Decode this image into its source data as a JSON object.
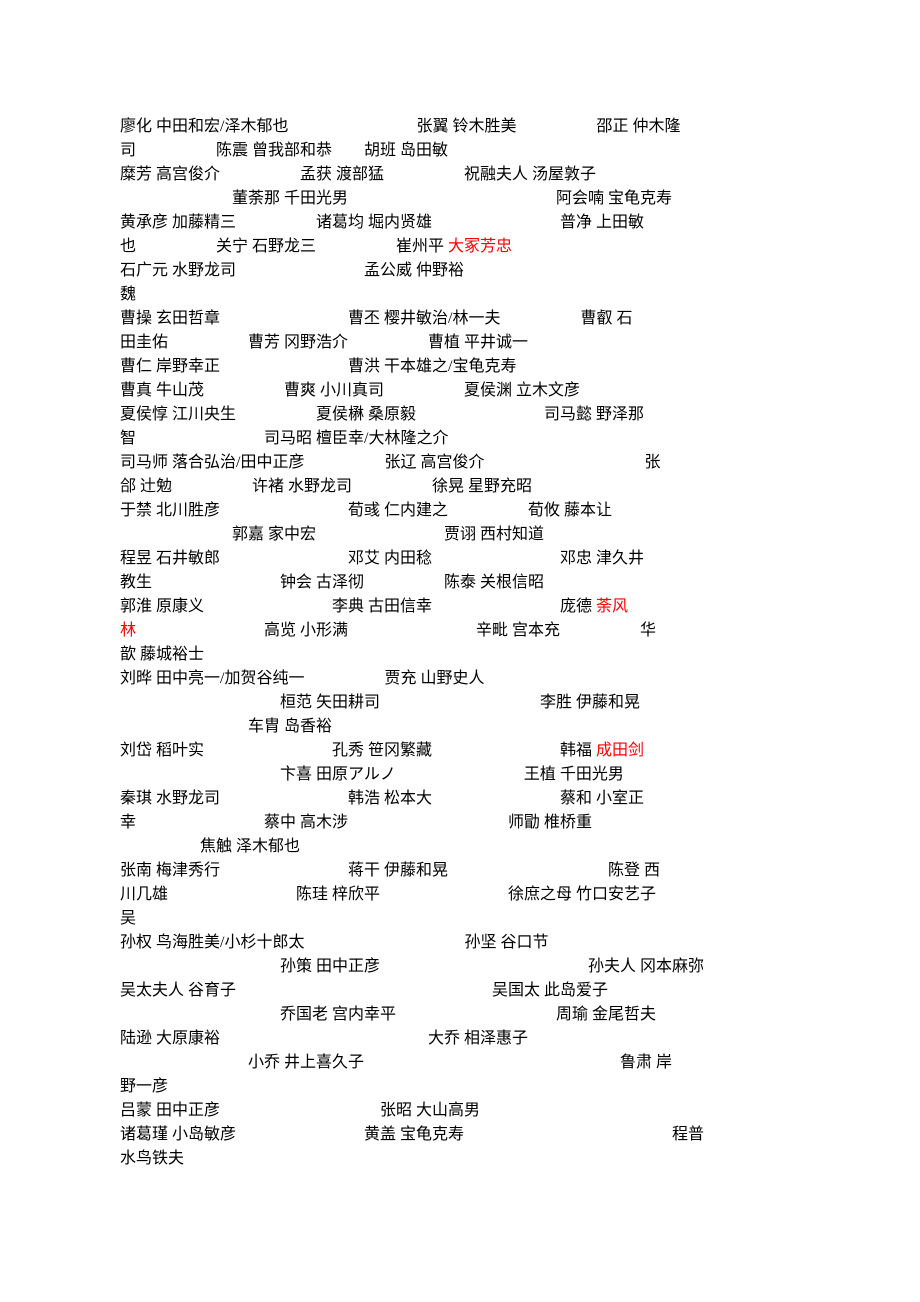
{
  "colors": {
    "text": "#000000",
    "highlight": "#ff0000",
    "background": "#ffffff"
  },
  "typography": {
    "font_family": "SimSun, 宋体, serif",
    "font_size_pt": 12,
    "line_height": 1.5
  },
  "lines": [
    [
      {
        "t": "廖化 中田和宏/泽木郁也",
        "c": "txt"
      },
      {
        "t": "",
        "c": "gap-l"
      },
      {
        "t": "张翼 铃木胜美",
        "c": "txt"
      },
      {
        "t": "",
        "c": "gap-m"
      },
      {
        "t": "邵正 仲木隆",
        "c": "txt"
      }
    ],
    [
      {
        "t": "司",
        "c": "txt"
      },
      {
        "t": "",
        "c": "gap-m"
      },
      {
        "t": "陈震 曾我部和恭",
        "c": "txt"
      },
      {
        "t": "",
        "c": "gap-s"
      },
      {
        "t": "胡班 岛田敏",
        "c": "txt"
      }
    ],
    [
      {
        "t": "糜芳 高宫俊介",
        "c": "txt"
      },
      {
        "t": "",
        "c": "gap-m"
      },
      {
        "t": "孟获 渡部猛",
        "c": "txt"
      },
      {
        "t": "",
        "c": "gap-m"
      },
      {
        "t": "祝融夫人 汤屋敦子",
        "c": "txt"
      }
    ],
    [
      {
        "t": "",
        "c": "indent"
      },
      {
        "t": "董荼那 千田光男",
        "c": "txt"
      },
      {
        "t": "",
        "c": "gap-l"
      },
      {
        "t": "",
        "c": "gap-m"
      },
      {
        "t": "阿会喃 宝龟克寿",
        "c": "txt"
      }
    ],
    [
      {
        "t": "黄承彦 加藤精三",
        "c": "txt"
      },
      {
        "t": "",
        "c": "gap-m"
      },
      {
        "t": "诸葛均 堀内贤雄",
        "c": "txt"
      },
      {
        "t": "",
        "c": "gap-l"
      },
      {
        "t": "普净 上田敏",
        "c": "txt"
      }
    ],
    [
      {
        "t": "也",
        "c": "txt"
      },
      {
        "t": "",
        "c": "gap-m"
      },
      {
        "t": "关宁 石野龙三",
        "c": "txt"
      },
      {
        "t": "",
        "c": "gap-m"
      },
      {
        "t": "崔州平 ",
        "c": "txt"
      },
      {
        "t": "大冢芳忠",
        "c": "hl"
      }
    ],
    [
      {
        "t": "石广元 水野龙司",
        "c": "txt"
      },
      {
        "t": "",
        "c": "gap-l"
      },
      {
        "t": "孟公威 仲野裕",
        "c": "txt"
      }
    ],
    [
      {
        "t": "魏",
        "c": "txt"
      }
    ],
    [
      {
        "t": "曹操 玄田哲章",
        "c": "txt"
      },
      {
        "t": "",
        "c": "gap-l"
      },
      {
        "t": "曹丕 樱井敏治/林一夫",
        "c": "txt"
      },
      {
        "t": "",
        "c": "gap-m"
      },
      {
        "t": "曹叡 石",
        "c": "txt"
      }
    ],
    [
      {
        "t": "田圭佑",
        "c": "txt"
      },
      {
        "t": "",
        "c": "gap-m"
      },
      {
        "t": "曹芳 冈野浩介",
        "c": "txt"
      },
      {
        "t": "",
        "c": "gap-m"
      },
      {
        "t": "曹植 平井诚一",
        "c": "txt"
      }
    ],
    [
      {
        "t": "曹仁 岸野幸正",
        "c": "txt"
      },
      {
        "t": "",
        "c": "gap-l"
      },
      {
        "t": "曹洪 干本雄之/宝龟克寿",
        "c": "txt"
      }
    ],
    [
      {
        "t": "  曹真 牛山茂",
        "c": "txt"
      },
      {
        "t": "",
        "c": "gap-m"
      },
      {
        "t": "曹爽 小川真司",
        "c": "txt"
      },
      {
        "t": "",
        "c": "gap-m"
      },
      {
        "t": "夏侯渊 立木文彦",
        "c": "txt"
      }
    ],
    [
      {
        "t": "夏侯惇 江川央生",
        "c": "txt"
      },
      {
        "t": "",
        "c": "gap-m"
      },
      {
        "t": "夏侯楙 桑原毅",
        "c": "txt"
      },
      {
        "t": "",
        "c": "gap-l"
      },
      {
        "t": "司马懿 野泽那",
        "c": "txt"
      }
    ],
    [
      {
        "t": "智",
        "c": "txt"
      },
      {
        "t": "",
        "c": "gap-l"
      },
      {
        "t": "司马昭 檀臣幸/大林隆之介",
        "c": "txt"
      }
    ],
    [
      {
        "t": "司马师 落合弘治/田中正彦",
        "c": "txt"
      },
      {
        "t": "",
        "c": "gap-m"
      },
      {
        "t": "张辽 高宫俊介",
        "c": "txt"
      },
      {
        "t": "",
        "c": "gap-l"
      },
      {
        "t": "",
        "c": "gap-s"
      },
      {
        "t": "张",
        "c": "txt"
      }
    ],
    [
      {
        "t": "郃 辻勉",
        "c": "txt"
      },
      {
        "t": "",
        "c": "gap-m"
      },
      {
        "t": "许褚 水野龙司",
        "c": "txt"
      },
      {
        "t": "",
        "c": "gap-m"
      },
      {
        "t": "徐晃 星野充昭",
        "c": "txt"
      }
    ],
    [
      {
        "t": "于禁 北川胜彦",
        "c": "txt"
      },
      {
        "t": "",
        "c": "gap-l"
      },
      {
        "t": "荀彧 仁内建之",
        "c": "txt"
      },
      {
        "t": "",
        "c": "gap-m"
      },
      {
        "t": "荀攸 藤本让",
        "c": "txt"
      }
    ],
    [
      {
        "t": "",
        "c": "indent"
      },
      {
        "t": "郭嘉 家中宏",
        "c": "txt"
      },
      {
        "t": "",
        "c": "gap-l"
      },
      {
        "t": "贾诩 西村知道",
        "c": "txt"
      }
    ],
    [
      {
        "t": "程昱 石井敏郎",
        "c": "txt"
      },
      {
        "t": "",
        "c": "gap-l"
      },
      {
        "t": "邓艾 内田稔",
        "c": "txt"
      },
      {
        "t": "",
        "c": "gap-l"
      },
      {
        "t": "邓忠 津久井",
        "c": "txt"
      }
    ],
    [
      {
        "t": "教生",
        "c": "txt"
      },
      {
        "t": "",
        "c": "gap-l"
      },
      {
        "t": "钟会 古泽彻",
        "c": "txt"
      },
      {
        "t": "",
        "c": "gap-m"
      },
      {
        "t": "陈泰 关根信昭",
        "c": "txt"
      }
    ],
    [
      {
        "t": "郭淮 原康义",
        "c": "txt"
      },
      {
        "t": "",
        "c": "gap-l"
      },
      {
        "t": "李典 古田信幸",
        "c": "txt"
      },
      {
        "t": "",
        "c": "gap-l"
      },
      {
        "t": "庞德 ",
        "c": "txt"
      },
      {
        "t": "荼风",
        "c": "hl"
      }
    ],
    [
      {
        "t": "林",
        "c": "hl"
      },
      {
        "t": "",
        "c": "gap-l"
      },
      {
        "t": "高览 小形满",
        "c": "txt"
      },
      {
        "t": "",
        "c": "gap-l"
      },
      {
        "t": "辛毗 宫本充",
        "c": "txt"
      },
      {
        "t": "",
        "c": "gap-m"
      },
      {
        "t": "华",
        "c": "txt"
      }
    ],
    [
      {
        "t": "歆 藤城裕士",
        "c": "txt"
      }
    ],
    [
      {
        "t": "刘晔 田中亮一/加贺谷纯一",
        "c": "txt"
      },
      {
        "t": "",
        "c": "gap-m"
      },
      {
        "t": "贾充 山野史人",
        "c": "txt"
      }
    ],
    [
      {
        "t": "",
        "c": "gap-l"
      },
      {
        "t": "",
        "c": "gap-s"
      },
      {
        "t": "桓范 矢田耕司",
        "c": "txt"
      },
      {
        "t": "",
        "c": "gap-l"
      },
      {
        "t": "",
        "c": "gap-s"
      },
      {
        "t": "李胜 伊藤和晃",
        "c": "txt"
      }
    ],
    [
      {
        "t": "",
        "c": "gap-l"
      },
      {
        "t": "车胄 岛香裕",
        "c": "txt"
      }
    ],
    [
      {
        "t": "刘岱 稻叶实",
        "c": "txt"
      },
      {
        "t": "",
        "c": "gap-l"
      },
      {
        "t": "孔秀 笹冈繁藏",
        "c": "txt"
      },
      {
        "t": "",
        "c": "gap-l"
      },
      {
        "t": "韩福 ",
        "c": "txt"
      },
      {
        "t": "成田剑",
        "c": "hl"
      }
    ],
    [
      {
        "t": "",
        "c": "gap-l"
      },
      {
        "t": "",
        "c": "gap-s"
      },
      {
        "t": "卞喜 田原アルノ",
        "c": "txt"
      },
      {
        "t": "",
        "c": "gap-l"
      },
      {
        "t": "王植 千田光男",
        "c": "txt"
      }
    ],
    [
      {
        "t": "秦琪 水野龙司",
        "c": "txt"
      },
      {
        "t": "",
        "c": "gap-l"
      },
      {
        "t": "韩浩 松本大",
        "c": "txt"
      },
      {
        "t": "",
        "c": "gap-l"
      },
      {
        "t": "蔡和 小室正",
        "c": "txt"
      }
    ],
    [
      {
        "t": "幸",
        "c": "txt"
      },
      {
        "t": "",
        "c": "gap-l"
      },
      {
        "t": "蔡中 高木涉",
        "c": "txt"
      },
      {
        "t": "",
        "c": "gap-l"
      },
      {
        "t": "",
        "c": "gap-s"
      },
      {
        "t": "师勖 椎桥重",
        "c": "txt"
      }
    ],
    [
      {
        "t": "",
        "c": "gap-m"
      },
      {
        "t": "焦触 泽木郁也",
        "c": "txt"
      }
    ],
    [
      {
        "t": "张南 梅津秀行",
        "c": "txt"
      },
      {
        "t": "",
        "c": "gap-l"
      },
      {
        "t": "蒋干 伊藤和晃",
        "c": "txt"
      },
      {
        "t": "",
        "c": "gap-l"
      },
      {
        "t": "",
        "c": "gap-s"
      },
      {
        "t": "陈登 西",
        "c": "txt"
      }
    ],
    [
      {
        "t": "川几雄",
        "c": "txt"
      },
      {
        "t": "",
        "c": "gap-l"
      },
      {
        "t": "陈珪 梓欣平",
        "c": "txt"
      },
      {
        "t": "",
        "c": "gap-l"
      },
      {
        "t": "徐庶之母 竹口安艺子",
        "c": "txt"
      }
    ],
    [
      {
        "t": "吴",
        "c": "txt"
      }
    ],
    [
      {
        "t": "孙权 鸟海胜美/小杉十郎太",
        "c": "txt"
      },
      {
        "t": "",
        "c": "gap-l"
      },
      {
        "t": "",
        "c": "gap-s"
      },
      {
        "t": "孙坚 谷口节",
        "c": "txt"
      }
    ],
    [
      {
        "t": "",
        "c": "gap-l"
      },
      {
        "t": "",
        "c": "gap-s"
      },
      {
        "t": "孙策  田中正彦",
        "c": "txt"
      },
      {
        "t": "",
        "c": "gap-l"
      },
      {
        "t": "",
        "c": "gap-m"
      },
      {
        "t": "孙夫人 冈本麻弥",
        "c": "txt"
      }
    ],
    [
      {
        "t": "吴太夫人 谷育子",
        "c": "txt"
      },
      {
        "t": "",
        "c": "gap-l"
      },
      {
        "t": "",
        "c": "gap-l"
      },
      {
        "t": "吴国太 此岛爱子",
        "c": "txt"
      }
    ],
    [
      {
        "t": "",
        "c": "gap-l"
      },
      {
        "t": "",
        "c": "gap-s"
      },
      {
        "t": "乔国老 宫内幸平",
        "c": "txt"
      },
      {
        "t": "",
        "c": "gap-l"
      },
      {
        "t": "",
        "c": "gap-s"
      },
      {
        "t": "周瑜 金尾哲夫",
        "c": "txt"
      }
    ],
    [
      {
        "t": "陆逊 大原康裕",
        "c": "txt"
      },
      {
        "t": "",
        "c": "gap-l"
      },
      {
        "t": "",
        "c": "gap-m"
      },
      {
        "t": "大乔 相泽惠子",
        "c": "txt"
      }
    ],
    [
      {
        "t": "",
        "c": "gap-l"
      },
      {
        "t": "小乔 井上喜久子",
        "c": "txt"
      },
      {
        "t": "",
        "c": "gap-l"
      },
      {
        "t": "",
        "c": "gap-l"
      },
      {
        "t": "鲁肃 岸",
        "c": "txt"
      }
    ],
    [
      {
        "t": "野一彦",
        "c": "txt"
      }
    ],
    [
      {
        "t": "吕蒙 田中正彦",
        "c": "txt"
      },
      {
        "t": "",
        "c": "gap-l"
      },
      {
        "t": "",
        "c": "gap-s"
      },
      {
        "t": "张昭 大山高男",
        "c": "txt"
      }
    ],
    [
      {
        "t": "诸葛瑾 小岛敏彦",
        "c": "txt"
      },
      {
        "t": "",
        "c": "gap-l"
      },
      {
        "t": "黄盖 宝龟克寿",
        "c": "txt"
      },
      {
        "t": "",
        "c": "gap-l"
      },
      {
        "t": "",
        "c": "gap-m"
      },
      {
        "t": "程普",
        "c": "txt"
      }
    ],
    [
      {
        "t": "水鸟铁夫",
        "c": "txt"
      }
    ]
  ]
}
